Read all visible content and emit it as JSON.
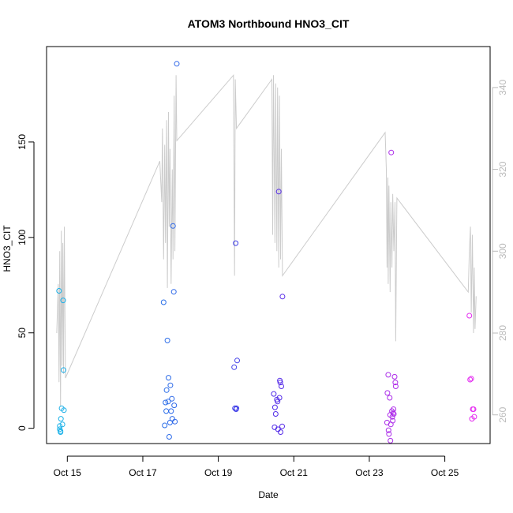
{
  "chart_data": {
    "type": "scatter",
    "title": "ATOM3 Northbound HNO3_CIT",
    "xlabel": "Date",
    "ylabel": "HNO3_CIT",
    "x_unit": "days (October)",
    "x_ticks": [
      {
        "value": 15,
        "label": "Oct 15"
      },
      {
        "value": 17,
        "label": "Oct 17"
      },
      {
        "value": 19,
        "label": "Oct 19"
      },
      {
        "value": 21,
        "label": "Oct 21"
      },
      {
        "value": 23,
        "label": "Oct 23"
      },
      {
        "value": 25,
        "label": "Oct 25"
      }
    ],
    "y_ticks": [
      0,
      50,
      100,
      150
    ],
    "y2_ticks": [
      260,
      280,
      300,
      320,
      340
    ],
    "xlim": [
      14.45,
      26.2
    ],
    "ylim": [
      -8,
      200
    ],
    "y2lim": [
      253,
      350
    ],
    "grid": false,
    "colors": {
      "scatter_gradient": [
        "#1ab2e8",
        "#2a6fe8",
        "#4a2be8",
        "#9e2de8",
        "#e62cf0"
      ],
      "secondary_line": "#cccccc",
      "axis": "#000000",
      "secondary_axis": "#bbbbbb"
    },
    "series": [
      {
        "kind": "points",
        "axis": "left",
        "points": [
          [
            14.78,
            72
          ],
          [
            14.8,
            1.2
          ],
          [
            14.82,
            -1.5
          ],
          [
            14.83,
            5
          ],
          [
            14.85,
            10.5
          ],
          [
            14.87,
            2
          ],
          [
            14.89,
            67
          ],
          [
            14.9,
            30.5
          ],
          [
            14.91,
            9.5
          ],
          [
            14.8,
            -0.5
          ],
          [
            14.82,
            -2
          ],
          [
            17.55,
            66
          ],
          [
            17.58,
            1.5
          ],
          [
            17.6,
            13.5
          ],
          [
            17.62,
            9
          ],
          [
            17.63,
            20
          ],
          [
            17.65,
            46
          ],
          [
            17.67,
            14
          ],
          [
            17.68,
            26.5
          ],
          [
            17.7,
            -4.5
          ],
          [
            17.72,
            3
          ],
          [
            17.73,
            22.5
          ],
          [
            17.75,
            9
          ],
          [
            17.77,
            15.5
          ],
          [
            17.78,
            5
          ],
          [
            17.8,
            106
          ],
          [
            17.82,
            71.5
          ],
          [
            17.83,
            12
          ],
          [
            17.85,
            3.5
          ],
          [
            17.9,
            191
          ],
          [
            19.42,
            32
          ],
          [
            19.44,
            10.5
          ],
          [
            19.46,
            97
          ],
          [
            19.47,
            10
          ],
          [
            19.48,
            10.5
          ],
          [
            19.5,
            35.5
          ],
          [
            20.47,
            18
          ],
          [
            20.49,
            0.5
          ],
          [
            20.5,
            11
          ],
          [
            20.52,
            7.5
          ],
          [
            20.55,
            15
          ],
          [
            20.57,
            14
          ],
          [
            20.58,
            -0.5
          ],
          [
            20.6,
            124
          ],
          [
            20.62,
            16
          ],
          [
            20.63,
            25
          ],
          [
            20.64,
            24
          ],
          [
            20.65,
            -2
          ],
          [
            20.67,
            22
          ],
          [
            20.69,
            1
          ],
          [
            20.7,
            69
          ]
        ]
      },
      {
        "kind": "points",
        "axis": "left",
        "points": [
          [
            23.47,
            3
          ],
          [
            23.48,
            18.5
          ],
          [
            23.5,
            28
          ],
          [
            23.51,
            -1
          ],
          [
            23.52,
            -3
          ],
          [
            23.54,
            16
          ],
          [
            23.55,
            7
          ],
          [
            23.56,
            -6.5
          ],
          [
            23.57,
            2
          ],
          [
            23.58,
            144.5
          ],
          [
            23.6,
            9
          ],
          [
            23.61,
            6
          ],
          [
            23.62,
            4
          ],
          [
            23.63,
            8
          ],
          [
            23.64,
            10
          ],
          [
            23.65,
            7.5
          ],
          [
            23.67,
            27
          ],
          [
            23.69,
            24
          ],
          [
            23.7,
            22
          ],
          [
            25.65,
            59
          ],
          [
            25.67,
            25.5
          ],
          [
            25.7,
            26
          ],
          [
            25.72,
            5
          ],
          [
            25.74,
            10
          ],
          [
            25.76,
            10
          ],
          [
            25.78,
            6
          ]
        ]
      },
      {
        "kind": "line",
        "axis": "right",
        "points": [
          [
            14.72,
            280
          ],
          [
            14.76,
            292
          ],
          [
            14.78,
            268
          ],
          [
            14.8,
            300
          ],
          [
            14.82,
            262
          ],
          [
            14.84,
            305
          ],
          [
            14.86,
            272
          ],
          [
            14.88,
            302
          ],
          [
            14.9,
            270
          ],
          [
            14.92,
            306
          ],
          [
            14.95,
            269
          ],
          [
            17.45,
            322
          ],
          [
            17.5,
            312
          ],
          [
            17.52,
            330
          ],
          [
            17.55,
            298
          ],
          [
            17.58,
            326
          ],
          [
            17.6,
            302
          ],
          [
            17.63,
            332
          ],
          [
            17.65,
            291
          ],
          [
            17.68,
            334
          ],
          [
            17.7,
            306
          ],
          [
            17.72,
            325
          ],
          [
            17.75,
            292
          ],
          [
            17.78,
            320
          ],
          [
            17.8,
            298
          ],
          [
            17.83,
            338
          ],
          [
            17.85,
            300
          ],
          [
            17.88,
            343
          ],
          [
            17.9,
            327
          ],
          [
            19.4,
            343
          ],
          [
            19.43,
            294
          ],
          [
            19.45,
            342
          ],
          [
            19.48,
            330
          ],
          [
            20.42,
            342
          ],
          [
            20.44,
            304
          ],
          [
            20.46,
            343
          ],
          [
            20.5,
            302
          ],
          [
            20.52,
            341
          ],
          [
            20.55,
            300
          ],
          [
            20.57,
            340
          ],
          [
            20.6,
            296
          ],
          [
            20.62,
            338
          ],
          [
            20.65,
            298
          ],
          [
            20.67,
            325
          ],
          [
            20.7,
            294
          ],
          [
            23.42,
            329
          ],
          [
            23.45,
            320
          ],
          [
            23.47,
            296
          ],
          [
            23.49,
            318
          ],
          [
            23.5,
            292
          ],
          [
            23.52,
            316
          ],
          [
            23.55,
            290
          ],
          [
            23.57,
            312
          ],
          [
            23.6,
            296
          ],
          [
            23.62,
            314
          ],
          [
            23.65,
            300
          ],
          [
            23.68,
            312
          ],
          [
            23.7,
            278
          ],
          [
            23.73,
            313
          ],
          [
            25.62,
            290
          ],
          [
            25.65,
            300
          ],
          [
            25.68,
            306
          ],
          [
            25.7,
            285
          ],
          [
            25.73,
            304
          ],
          [
            25.76,
            280
          ],
          [
            25.78,
            296
          ],
          [
            25.8,
            281
          ],
          [
            25.83,
            289
          ]
        ]
      }
    ]
  }
}
